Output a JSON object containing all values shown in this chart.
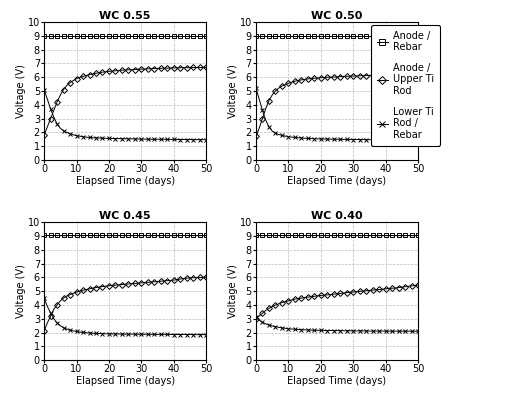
{
  "panels": [
    {
      "title": "WC 0.55",
      "anode_rebar_y": 9.0,
      "anode_upper": {
        "x": [
          0,
          1,
          2,
          3,
          4,
          5,
          6,
          7,
          8,
          9,
          10,
          11,
          12,
          13,
          14,
          15,
          16,
          17,
          18,
          19,
          20,
          21,
          22,
          23,
          24,
          25,
          26,
          27,
          28,
          29,
          30,
          31,
          32,
          33,
          34,
          35,
          36,
          37,
          38,
          39,
          40,
          41,
          42,
          43,
          44,
          45,
          46,
          47,
          48,
          49,
          50
        ],
        "y": [
          1.8,
          2.4,
          3.0,
          3.6,
          4.2,
          4.7,
          5.1,
          5.4,
          5.6,
          5.75,
          5.9,
          5.98,
          6.05,
          6.12,
          6.18,
          6.23,
          6.28,
          6.32,
          6.36,
          6.39,
          6.42,
          6.44,
          6.46,
          6.48,
          6.5,
          6.52,
          6.53,
          6.54,
          6.55,
          6.57,
          6.58,
          6.59,
          6.6,
          6.61,
          6.62,
          6.63,
          6.64,
          6.65,
          6.65,
          6.66,
          6.67,
          6.67,
          6.68,
          6.68,
          6.69,
          6.69,
          6.7,
          6.7,
          6.7,
          6.7,
          6.7
        ]
      },
      "lower_rebar": {
        "x": [
          0,
          1,
          2,
          3,
          4,
          5,
          6,
          7,
          8,
          9,
          10,
          11,
          12,
          13,
          14,
          15,
          16,
          17,
          18,
          19,
          20,
          21,
          22,
          23,
          24,
          25,
          26,
          27,
          28,
          29,
          30,
          31,
          32,
          33,
          34,
          35,
          36,
          37,
          38,
          39,
          40,
          41,
          42,
          43,
          44,
          45,
          46,
          47,
          48,
          49,
          50
        ],
        "y": [
          5.1,
          4.4,
          3.7,
          3.1,
          2.6,
          2.3,
          2.1,
          2.0,
          1.9,
          1.82,
          1.76,
          1.72,
          1.68,
          1.65,
          1.63,
          1.61,
          1.6,
          1.59,
          1.58,
          1.57,
          1.56,
          1.56,
          1.55,
          1.55,
          1.54,
          1.54,
          1.53,
          1.53,
          1.52,
          1.52,
          1.51,
          1.51,
          1.51,
          1.5,
          1.5,
          1.5,
          1.5,
          1.5,
          1.49,
          1.49,
          1.49,
          1.49,
          1.48,
          1.48,
          1.48,
          1.48,
          1.47,
          1.47,
          1.47,
          1.47,
          1.47
        ]
      }
    },
    {
      "title": "WC 0.50",
      "anode_rebar_y": 9.0,
      "anode_upper": {
        "x": [
          0,
          1,
          2,
          3,
          4,
          5,
          6,
          7,
          8,
          9,
          10,
          11,
          12,
          13,
          14,
          15,
          16,
          17,
          18,
          19,
          20,
          21,
          22,
          23,
          24,
          25,
          26,
          27,
          28,
          29,
          30,
          31,
          32,
          33,
          34,
          35,
          36,
          37,
          38,
          39,
          40,
          41,
          42,
          43,
          44,
          45,
          46,
          47,
          48,
          49,
          50
        ],
        "y": [
          1.7,
          2.3,
          3.0,
          3.7,
          4.3,
          4.7,
          5.0,
          5.2,
          5.35,
          5.45,
          5.55,
          5.63,
          5.7,
          5.75,
          5.8,
          5.84,
          5.87,
          5.9,
          5.92,
          5.94,
          5.96,
          5.97,
          5.99,
          6.0,
          6.01,
          6.02,
          6.04,
          6.05,
          6.06,
          6.07,
          6.08,
          6.09,
          6.1,
          6.11,
          6.11,
          6.12,
          6.13,
          6.14,
          6.14,
          6.15,
          6.15,
          6.16,
          6.16,
          6.17,
          6.17,
          6.17,
          6.18,
          6.18,
          6.18,
          6.19,
          6.19
        ]
      },
      "lower_rebar": {
        "x": [
          0,
          1,
          2,
          3,
          4,
          5,
          6,
          7,
          8,
          9,
          10,
          11,
          12,
          13,
          14,
          15,
          16,
          17,
          18,
          19,
          20,
          21,
          22,
          23,
          24,
          25,
          26,
          27,
          28,
          29,
          30,
          31,
          32,
          33,
          34,
          35,
          36,
          37,
          38,
          39,
          40,
          41,
          42,
          43,
          44,
          45,
          46,
          47,
          48,
          49,
          50
        ],
        "y": [
          5.2,
          4.4,
          3.6,
          2.9,
          2.4,
          2.1,
          1.95,
          1.85,
          1.78,
          1.73,
          1.69,
          1.66,
          1.63,
          1.61,
          1.59,
          1.57,
          1.56,
          1.55,
          1.54,
          1.53,
          1.52,
          1.52,
          1.51,
          1.51,
          1.5,
          1.5,
          1.5,
          1.49,
          1.49,
          1.49,
          1.48,
          1.48,
          1.48,
          1.48,
          1.47,
          1.47,
          1.47,
          1.47,
          1.46,
          1.46,
          1.46,
          1.46,
          1.46,
          1.46,
          1.45,
          1.45,
          1.45,
          1.45,
          1.45,
          1.45,
          1.45
        ]
      }
    },
    {
      "title": "WC 0.45",
      "anode_rebar_y": 9.1,
      "anode_upper": {
        "x": [
          0,
          1,
          2,
          3,
          4,
          5,
          6,
          7,
          8,
          9,
          10,
          11,
          12,
          13,
          14,
          15,
          16,
          17,
          18,
          19,
          20,
          21,
          22,
          23,
          24,
          25,
          26,
          27,
          28,
          29,
          30,
          31,
          32,
          33,
          34,
          35,
          36,
          37,
          38,
          39,
          40,
          41,
          42,
          43,
          44,
          45,
          46,
          47,
          48,
          49,
          50
        ],
        "y": [
          2.1,
          2.7,
          3.2,
          3.7,
          4.0,
          4.3,
          4.5,
          4.65,
          4.75,
          4.85,
          4.93,
          5.0,
          5.07,
          5.12,
          5.17,
          5.22,
          5.26,
          5.3,
          5.33,
          5.36,
          5.39,
          5.42,
          5.44,
          5.46,
          5.48,
          5.5,
          5.52,
          5.54,
          5.56,
          5.58,
          5.6,
          5.62,
          5.64,
          5.66,
          5.68,
          5.7,
          5.72,
          5.74,
          5.76,
          5.78,
          5.8,
          5.84,
          5.88,
          5.91,
          5.94,
          5.96,
          5.97,
          5.98,
          5.99,
          6.0,
          6.0
        ]
      },
      "lower_rebar": {
        "x": [
          0,
          1,
          2,
          3,
          4,
          5,
          6,
          7,
          8,
          9,
          10,
          11,
          12,
          13,
          14,
          15,
          16,
          17,
          18,
          19,
          20,
          21,
          22,
          23,
          24,
          25,
          26,
          27,
          28,
          29,
          30,
          31,
          32,
          33,
          34,
          35,
          36,
          37,
          38,
          39,
          40,
          41,
          42,
          43,
          44,
          45,
          46,
          47,
          48,
          49,
          50
        ],
        "y": [
          4.5,
          3.9,
          3.4,
          3.0,
          2.7,
          2.5,
          2.35,
          2.25,
          2.18,
          2.12,
          2.08,
          2.04,
          2.01,
          1.99,
          1.97,
          1.95,
          1.94,
          1.93,
          1.92,
          1.91,
          1.91,
          1.9,
          1.9,
          1.9,
          1.89,
          1.89,
          1.89,
          1.89,
          1.88,
          1.88,
          1.88,
          1.88,
          1.88,
          1.87,
          1.87,
          1.87,
          1.87,
          1.87,
          1.87,
          1.86,
          1.86,
          1.86,
          1.86,
          1.86,
          1.86,
          1.86,
          1.85,
          1.85,
          1.85,
          1.85,
          1.85
        ]
      }
    },
    {
      "title": "WC 0.40",
      "anode_rebar_y": 9.1,
      "anode_upper": {
        "x": [
          0,
          1,
          2,
          3,
          4,
          5,
          6,
          7,
          8,
          9,
          10,
          11,
          12,
          13,
          14,
          15,
          16,
          17,
          18,
          19,
          20,
          21,
          22,
          23,
          24,
          25,
          26,
          27,
          28,
          29,
          30,
          31,
          32,
          33,
          34,
          35,
          36,
          37,
          38,
          39,
          40,
          41,
          42,
          43,
          44,
          45,
          46,
          47,
          48,
          49,
          50
        ],
        "y": [
          3.0,
          3.2,
          3.4,
          3.6,
          3.75,
          3.88,
          3.99,
          4.08,
          4.17,
          4.24,
          4.3,
          4.36,
          4.42,
          4.46,
          4.5,
          4.54,
          4.57,
          4.6,
          4.63,
          4.66,
          4.69,
          4.71,
          4.73,
          4.75,
          4.78,
          4.8,
          4.83,
          4.86,
          4.89,
          4.91,
          4.94,
          4.96,
          4.99,
          5.01,
          5.03,
          5.05,
          5.08,
          5.1,
          5.12,
          5.14,
          5.17,
          5.19,
          5.21,
          5.23,
          5.26,
          5.29,
          5.32,
          5.35,
          5.38,
          5.41,
          5.44
        ]
      },
      "lower_rebar": {
        "x": [
          0,
          1,
          2,
          3,
          4,
          5,
          6,
          7,
          8,
          9,
          10,
          11,
          12,
          13,
          14,
          15,
          16,
          17,
          18,
          19,
          20,
          21,
          22,
          23,
          24,
          25,
          26,
          27,
          28,
          29,
          30,
          31,
          32,
          33,
          34,
          35,
          36,
          37,
          38,
          39,
          40,
          41,
          42,
          43,
          44,
          45,
          46,
          47,
          48,
          49,
          50
        ],
        "y": [
          3.1,
          2.9,
          2.75,
          2.63,
          2.55,
          2.48,
          2.43,
          2.38,
          2.34,
          2.31,
          2.28,
          2.26,
          2.24,
          2.22,
          2.21,
          2.2,
          2.19,
          2.18,
          2.17,
          2.17,
          2.16,
          2.16,
          2.15,
          2.15,
          2.14,
          2.14,
          2.14,
          2.13,
          2.13,
          2.13,
          2.12,
          2.12,
          2.12,
          2.12,
          2.12,
          2.11,
          2.11,
          2.11,
          2.11,
          2.11,
          2.11,
          2.1,
          2.1,
          2.1,
          2.1,
          2.1,
          2.1,
          2.1,
          2.1,
          2.1,
          2.1
        ]
      }
    }
  ],
  "xlabel": "Elapsed Time (days)",
  "ylabel": "Voltage (V)",
  "xlim": [
    0,
    50
  ],
  "ylim": [
    0,
    10
  ],
  "yticks": [
    0,
    1,
    2,
    3,
    4,
    5,
    6,
    7,
    8,
    9,
    10
  ],
  "xticks": [
    0,
    10,
    20,
    30,
    40,
    50
  ],
  "color": "#000000",
  "marker_square": "s",
  "marker_diamond": "D",
  "marker_x": "x",
  "title_fontsize": 8,
  "axis_fontsize": 7,
  "tick_fontsize": 7,
  "legend_fontsize": 7,
  "grid_color": "#bbbbbb",
  "grid_linestyle": "--",
  "background_color": "#ffffff",
  "markersize_square": 3,
  "markersize_diamond": 3,
  "markersize_x": 3,
  "markevery_square": 2
}
